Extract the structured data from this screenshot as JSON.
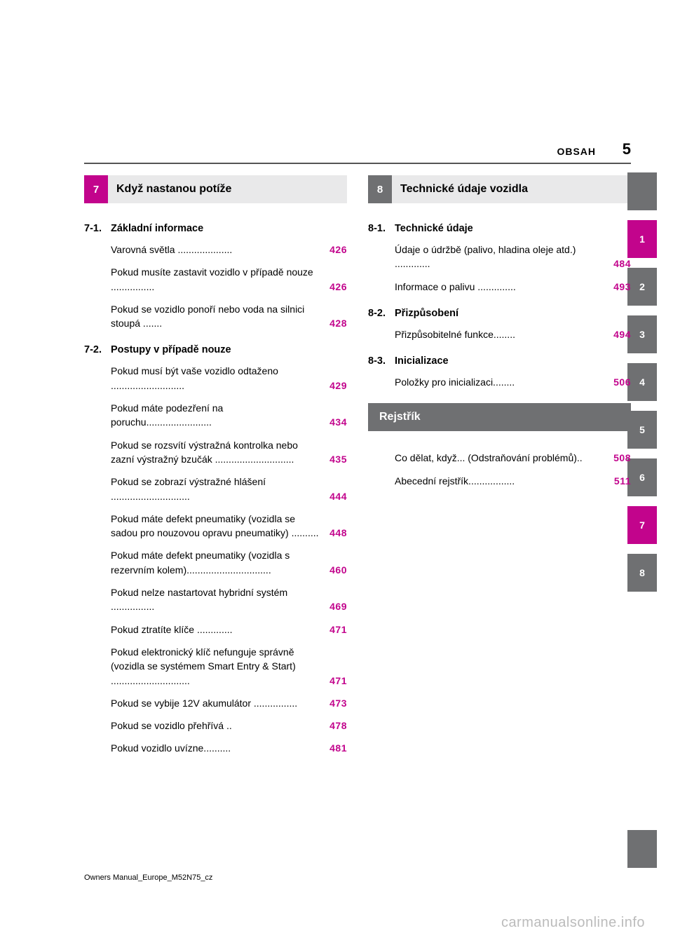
{
  "colors": {
    "accent": "#c2048c",
    "grey_tab": "#6f7072",
    "light_grey": "#e9e9ea",
    "text": "#000000",
    "bg": "#ffffff",
    "watermark": "#bbbbbb"
  },
  "header": {
    "section_label": "OBSAH",
    "page_number": "5"
  },
  "left_column": {
    "chapter_num": "7",
    "chapter_title": "Když nastanou potíže",
    "chapter_color": "#c2048c",
    "sections": [
      {
        "num": "7-1.",
        "title": "Základní informace",
        "entries": [
          {
            "text": "Varovná světla ....................",
            "page": "426",
            "page_color": "#c2048c"
          },
          {
            "text": "Pokud musíte zastavit vozidlo v případě nouze ................",
            "page": "426",
            "page_color": "#c2048c"
          },
          {
            "text": "Pokud se vozidlo ponoří nebo voda na silnici stoupá .......",
            "page": "428",
            "page_color": "#c2048c"
          }
        ]
      },
      {
        "num": "7-2.",
        "title": "Postupy v případě nouze",
        "entries": [
          {
            "text": "Pokud musí být vaše vozidlo odtaženo ...........................",
            "page": "429",
            "page_color": "#c2048c"
          },
          {
            "text": "Pokud máte podezření na poruchu........................",
            "page": "434",
            "page_color": "#c2048c"
          },
          {
            "text": "Pokud se rozsvítí výstražná kontrolka nebo zazní výstražný bzučák .............................",
            "page": "435",
            "page_color": "#c2048c"
          },
          {
            "text": "Pokud se zobrazí výstražné hlášení .............................",
            "page": "444",
            "page_color": "#c2048c"
          },
          {
            "text": "Pokud máte defekt pneumatiky (vozidla se sadou pro nouzovou opravu pneumatiky) ..........",
            "page": "448",
            "page_color": "#c2048c"
          },
          {
            "text": "Pokud máte defekt pneumatiky (vozidla s rezervním kolem)...............................",
            "page": "460",
            "page_color": "#c2048c"
          },
          {
            "text": "Pokud nelze nastartovat hybridní systém ................",
            "page": "469",
            "page_color": "#c2048c"
          },
          {
            "text": "Pokud ztratíte klíče .............",
            "page": "471",
            "page_color": "#c2048c"
          },
          {
            "text": "Pokud elektronický klíč nefunguje správně (vozidla se systémem Smart Entry & Start) .............................",
            "page": "471",
            "page_color": "#c2048c"
          },
          {
            "text": "Pokud se vybije 12V akumulátor ................",
            "page": "473",
            "page_color": "#c2048c"
          },
          {
            "text": "Pokud se vozidlo přehřívá ..",
            "page": "478",
            "page_color": "#c2048c"
          },
          {
            "text": "Pokud vozidlo uvízne..........",
            "page": "481",
            "page_color": "#c2048c"
          }
        ]
      }
    ]
  },
  "right_column": {
    "chapter_num": "8",
    "chapter_title": "Technické údaje vozidla",
    "chapter_color": "#6f7072",
    "sections": [
      {
        "num": "8-1.",
        "title": "Technické údaje",
        "entries": [
          {
            "text": "Údaje o údržbě (palivo, hladina oleje atd.) .............",
            "page": "484",
            "page_color": "#c2048c"
          },
          {
            "text": "Informace o palivu ..............",
            "page": "493",
            "page_color": "#c2048c"
          }
        ]
      },
      {
        "num": "8-2.",
        "title": "Přizpůsobení",
        "entries": [
          {
            "text": "Přizpůsobitelné funkce........",
            "page": "494",
            "page_color": "#c2048c"
          }
        ]
      },
      {
        "num": "8-3.",
        "title": "Inicializace",
        "entries": [
          {
            "text": "Položky pro inicializaci........",
            "page": "506",
            "page_color": "#c2048c"
          }
        ]
      }
    ],
    "index": {
      "title": "Rejstřík",
      "entries": [
        {
          "text": "Co dělat, když... (Odstraňování problémů)..",
          "page": "508",
          "page_color": "#c2048c"
        },
        {
          "text": "Abecední rejstřík.................",
          "page": "511",
          "page_color": "#c2048c"
        }
      ]
    }
  },
  "side_tabs": [
    {
      "label": "",
      "color": "#6f7072"
    },
    {
      "label": "1",
      "color": "#c2048c"
    },
    {
      "label": "2",
      "color": "#6f7072"
    },
    {
      "label": "3",
      "color": "#6f7072"
    },
    {
      "label": "4",
      "color": "#6f7072"
    },
    {
      "label": "5",
      "color": "#6f7072"
    },
    {
      "label": "6",
      "color": "#6f7072"
    },
    {
      "label": "7",
      "color": "#c2048c"
    },
    {
      "label": "8",
      "color": "#6f7072"
    }
  ],
  "side_tab_blank_color": "#6f7072",
  "footer": "Owners Manual_Europe_M52N75_cz",
  "watermark": "carmanualsonline.info"
}
